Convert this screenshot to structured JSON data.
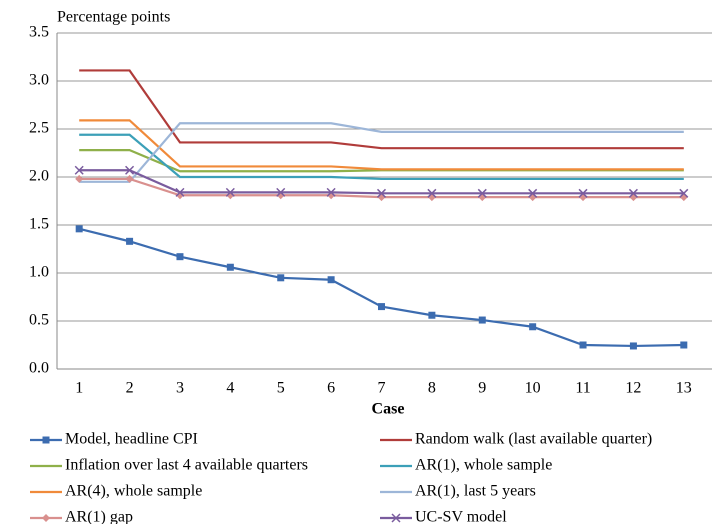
{
  "chart_data": {
    "type": "line",
    "y_label": "Percentage points",
    "x_label": "Case",
    "categories": [
      "1",
      "2",
      "3",
      "4",
      "5",
      "6",
      "7",
      "8",
      "9",
      "10",
      "11",
      "12",
      "13"
    ],
    "ylim": [
      0,
      3.5
    ],
    "yticks": [
      {
        "value": 0,
        "label": "0.0"
      },
      0.5,
      {
        "value": 1,
        "label": "1.0"
      },
      1.5,
      {
        "value": 2,
        "label": "2.0"
      },
      2.5,
      {
        "value": 3,
        "label": "3.0"
      },
      3.5
    ],
    "grid": true,
    "series": [
      {
        "name": "Model, headline CPI",
        "color": "#3c6cb0",
        "marker": "square",
        "values": [
          1.46,
          1.33,
          1.17,
          1.06,
          0.95,
          0.93,
          0.65,
          0.56,
          0.51,
          0.44,
          0.25,
          0.24,
          0.25
        ]
      },
      {
        "name": "Random walk (last available quarter)",
        "color": "#b03c3a",
        "values": [
          3.11,
          3.11,
          2.36,
          2.36,
          2.36,
          2.36,
          2.3,
          2.3,
          2.3,
          2.3,
          2.3,
          2.3,
          2.3
        ]
      },
      {
        "name": "Inflation over last 4 available quarters",
        "color": "#8fb04a",
        "values": [
          2.28,
          2.28,
          2.06,
          2.06,
          2.06,
          2.06,
          2.07,
          2.07,
          2.07,
          2.07,
          2.07,
          2.07,
          2.07
        ]
      },
      {
        "name": "AR(1), whole sample",
        "color": "#3ca0b8",
        "values": [
          2.44,
          2.44,
          2.0,
          2.0,
          2.0,
          2.0,
          1.98,
          1.98,
          1.98,
          1.98,
          1.98,
          1.98,
          1.98
        ]
      },
      {
        "name": "AR(4), whole sample",
        "color": "#f08a3a",
        "values": [
          2.59,
          2.59,
          2.11,
          2.11,
          2.11,
          2.11,
          2.08,
          2.08,
          2.08,
          2.08,
          2.08,
          2.08,
          2.08
        ]
      },
      {
        "name": "AR(1), last 5 years",
        "color": "#9db6d8",
        "values": [
          1.95,
          1.95,
          2.56,
          2.56,
          2.56,
          2.56,
          2.47,
          2.47,
          2.47,
          2.47,
          2.47,
          2.47,
          2.47
        ]
      },
      {
        "name": "AR(1) gap",
        "color": "#d9908e",
        "marker": "diamond",
        "values": [
          1.98,
          1.98,
          1.81,
          1.81,
          1.81,
          1.81,
          1.79,
          1.79,
          1.79,
          1.79,
          1.79,
          1.79,
          1.79
        ]
      },
      {
        "name": "UC-SV model",
        "color": "#7a5c9e",
        "marker": "x",
        "values": [
          2.07,
          2.07,
          1.84,
          1.84,
          1.84,
          1.84,
          1.83,
          1.83,
          1.83,
          1.83,
          1.83,
          1.83,
          1.83
        ]
      }
    ]
  }
}
